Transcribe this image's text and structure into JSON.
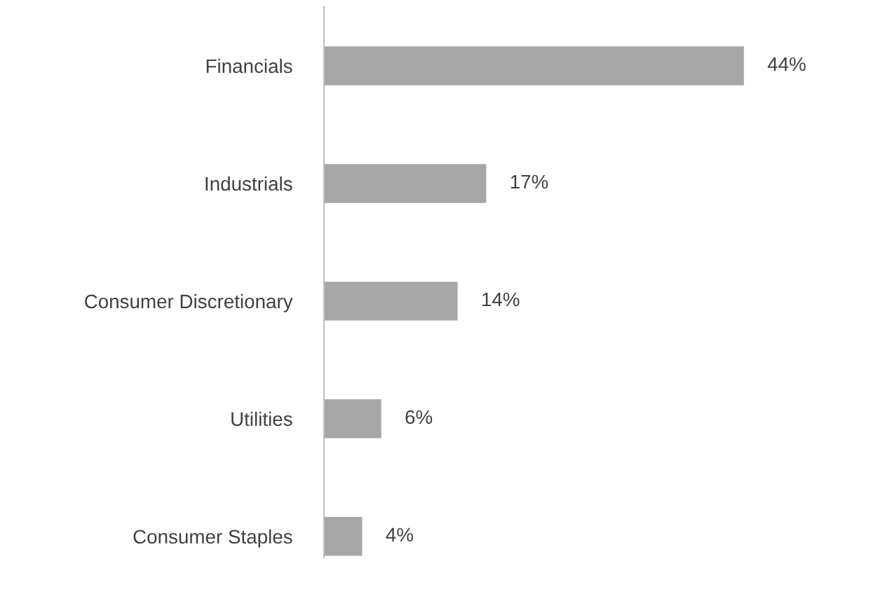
{
  "chart_data": {
    "type": "bar",
    "orientation": "horizontal",
    "categories": [
      "Financials",
      "Industrials",
      "Consumer Discretionary",
      "Utilities",
      "Consumer Staples"
    ],
    "values": [
      44,
      17,
      14,
      6,
      4
    ],
    "value_labels": [
      "44%",
      "17%",
      "14%",
      "6%",
      "4%"
    ],
    "color": "#a6a6a6",
    "grid": false,
    "legend": false
  }
}
